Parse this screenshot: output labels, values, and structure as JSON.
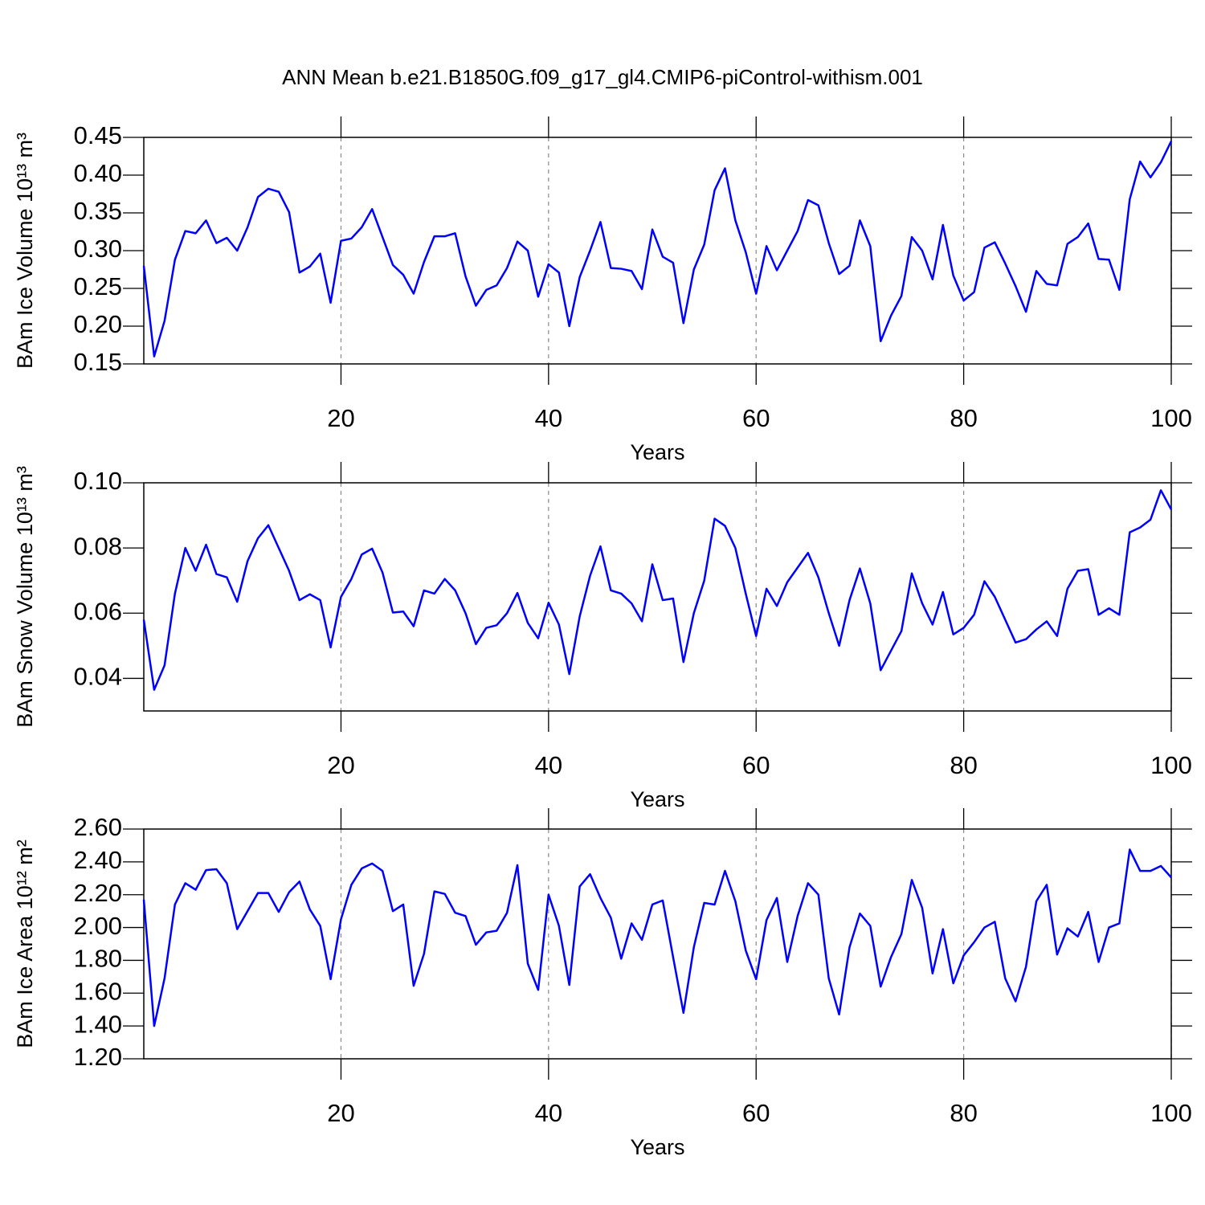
{
  "chart_data": [
    {
      "type": "line",
      "title": "ANN Mean b.e21.B1850G.f09_g17_gl4.CMIP6-piControl-withism.001",
      "xlabel": "Years",
      "ylabel": "BAm Ice Volume 10¹³ m³",
      "color": "#0000ff",
      "grid": true,
      "xlim": [
        1,
        100
      ],
      "xticks": [
        20,
        40,
        60,
        80,
        100
      ],
      "ylim": [
        0.15,
        0.45
      ],
      "yticks": [
        0.15,
        {
          "value": 0.2,
          "label": "0.20"
        },
        0.25,
        {
          "value": 0.3,
          "label": "0.30"
        },
        0.35,
        {
          "value": 0.4,
          "label": "0.40"
        },
        0.45
      ],
      "x": [
        1,
        2,
        3,
        4,
        5,
        6,
        7,
        8,
        9,
        10,
        11,
        12,
        13,
        14,
        15,
        16,
        17,
        18,
        19,
        20,
        21,
        22,
        23,
        24,
        25,
        26,
        27,
        28,
        29,
        30,
        31,
        32,
        33,
        34,
        35,
        36,
        37,
        38,
        39,
        40,
        41,
        42,
        43,
        44,
        45,
        46,
        47,
        48,
        49,
        50,
        51,
        52,
        53,
        54,
        55,
        56,
        57,
        58,
        59,
        60,
        61,
        62,
        63,
        64,
        65,
        66,
        67,
        68,
        69,
        70,
        71,
        72,
        73,
        74,
        75,
        76,
        77,
        78,
        79,
        80,
        81,
        82,
        83,
        84,
        85,
        86,
        87,
        88,
        89,
        90,
        91,
        92,
        93,
        94,
        95,
        96,
        97,
        98,
        99,
        100
      ],
      "values": [
        0.28,
        0.16,
        0.207,
        0.288,
        0.326,
        0.323,
        0.34,
        0.31,
        0.317,
        0.3,
        0.331,
        0.371,
        0.382,
        0.378,
        0.351,
        0.271,
        0.279,
        0.296,
        0.231,
        0.313,
        0.316,
        0.331,
        0.355,
        0.318,
        0.281,
        0.268,
        0.243,
        0.285,
        0.319,
        0.319,
        0.323,
        0.266,
        0.227,
        0.248,
        0.254,
        0.277,
        0.312,
        0.3,
        0.239,
        0.282,
        0.271,
        0.2,
        0.265,
        0.3,
        0.338,
        0.277,
        0.276,
        0.273,
        0.249,
        0.328,
        0.292,
        0.284,
        0.204,
        0.275,
        0.308,
        0.38,
        0.409,
        0.34,
        0.298,
        0.243,
        0.306,
        0.274,
        0.3,
        0.326,
        0.367,
        0.36,
        0.31,
        0.269,
        0.28,
        0.34,
        0.306,
        0.18,
        0.214,
        0.24,
        0.318,
        0.3,
        0.262,
        0.334,
        0.267,
        0.234,
        0.245,
        0.304,
        0.311,
        0.283,
        0.253,
        0.219,
        0.273,
        0.256,
        0.254,
        0.309,
        0.318,
        0.336,
        0.289,
        0.288,
        0.248,
        0.368,
        0.418,
        0.397,
        0.417,
        0.445
      ]
    },
    {
      "type": "line",
      "xlabel": "Years",
      "ylabel": "BAm Snow Volume 10¹³ m³",
      "color": "#0000ff",
      "grid": true,
      "xlim": [
        1,
        100
      ],
      "xticks": [
        20,
        40,
        60,
        80,
        100
      ],
      "ylim": [
        0.03,
        0.1
      ],
      "yticks": [
        0.04,
        0.06,
        0.08,
        {
          "value": 0.1,
          "label": "0.10"
        }
      ],
      "x": [
        1,
        2,
        3,
        4,
        5,
        6,
        7,
        8,
        9,
        10,
        11,
        12,
        13,
        14,
        15,
        16,
        17,
        18,
        19,
        20,
        21,
        22,
        23,
        24,
        25,
        26,
        27,
        28,
        29,
        30,
        31,
        32,
        33,
        34,
        35,
        36,
        37,
        38,
        39,
        40,
        41,
        42,
        43,
        44,
        45,
        46,
        47,
        48,
        49,
        50,
        51,
        52,
        53,
        54,
        55,
        56,
        57,
        58,
        59,
        60,
        61,
        62,
        63,
        64,
        65,
        66,
        67,
        68,
        69,
        70,
        71,
        72,
        73,
        74,
        75,
        76,
        77,
        78,
        79,
        80,
        81,
        82,
        83,
        84,
        85,
        86,
        87,
        88,
        89,
        90,
        91,
        92,
        93,
        94,
        95,
        96,
        97,
        98,
        99,
        100
      ],
      "values": [
        0.058,
        0.0365,
        0.044,
        0.066,
        0.08,
        0.073,
        0.081,
        0.072,
        0.071,
        0.0635,
        0.076,
        0.083,
        0.087,
        0.08,
        0.073,
        0.064,
        0.0658,
        0.064,
        0.0495,
        0.065,
        0.0705,
        0.078,
        0.0798,
        0.0725,
        0.0602,
        0.0605,
        0.056,
        0.067,
        0.066,
        0.0705,
        0.067,
        0.06,
        0.0505,
        0.0555,
        0.0563,
        0.06,
        0.0662,
        0.057,
        0.0523,
        0.0632,
        0.0565,
        0.0413,
        0.059,
        0.0715,
        0.0805,
        0.067,
        0.066,
        0.063,
        0.0575,
        0.075,
        0.064,
        0.0645,
        0.045,
        0.06,
        0.07,
        0.089,
        0.0868,
        0.08,
        0.066,
        0.053,
        0.0675,
        0.0622,
        0.0695,
        0.074,
        0.0785,
        0.071,
        0.06,
        0.05,
        0.064,
        0.0737,
        0.063,
        0.0425,
        0.0485,
        0.0545,
        0.0722,
        0.063,
        0.0565,
        0.0665,
        0.0535,
        0.0555,
        0.0595,
        0.0698,
        0.065,
        0.058,
        0.051,
        0.052,
        0.055,
        0.0575,
        0.053,
        0.0675,
        0.073,
        0.0735,
        0.0595,
        0.0615,
        0.0595,
        0.0848,
        0.0863,
        0.0887,
        0.0977,
        0.0918
      ]
    },
    {
      "type": "line",
      "xlabel": "Years",
      "ylabel": "BAm Ice Area 10¹² m²",
      "color": "#0000ff",
      "grid": true,
      "xlim": [
        1,
        100
      ],
      "xticks": [
        20,
        40,
        60,
        80,
        100
      ],
      "ylim": [
        1.2,
        2.6
      ],
      "yticks": [
        {
          "value": 1.2,
          "label": "1.20"
        },
        {
          "value": 1.4,
          "label": "1.40"
        },
        {
          "value": 1.6,
          "label": "1.60"
        },
        {
          "value": 1.8,
          "label": "1.80"
        },
        {
          "value": 2,
          "label": "2.00"
        },
        {
          "value": 2.2,
          "label": "2.20"
        },
        {
          "value": 2.4,
          "label": "2.40"
        },
        {
          "value": 2.6,
          "label": "2.60"
        }
      ],
      "x": [
        1,
        2,
        3,
        4,
        5,
        6,
        7,
        8,
        9,
        10,
        11,
        12,
        13,
        14,
        15,
        16,
        17,
        18,
        19,
        20,
        21,
        22,
        23,
        24,
        25,
        26,
        27,
        28,
        29,
        30,
        31,
        32,
        33,
        34,
        35,
        36,
        37,
        38,
        39,
        40,
        41,
        42,
        43,
        44,
        45,
        46,
        47,
        48,
        49,
        50,
        51,
        52,
        53,
        54,
        55,
        56,
        57,
        58,
        59,
        60,
        61,
        62,
        63,
        64,
        65,
        66,
        67,
        68,
        69,
        70,
        71,
        72,
        73,
        74,
        75,
        76,
        77,
        78,
        79,
        80,
        81,
        82,
        83,
        84,
        85,
        86,
        87,
        88,
        89,
        90,
        91,
        92,
        93,
        94,
        95,
        96,
        97,
        98,
        99,
        100
      ],
      "values": [
        2.17,
        1.4,
        1.69,
        2.14,
        2.27,
        2.23,
        2.35,
        2.355,
        2.27,
        1.99,
        2.1,
        2.21,
        2.21,
        2.095,
        2.215,
        2.28,
        2.11,
        2.01,
        1.685,
        2.05,
        2.26,
        2.36,
        2.39,
        2.345,
        2.1,
        2.14,
        1.645,
        1.84,
        2.22,
        2.205,
        2.09,
        2.07,
        1.895,
        1.97,
        1.98,
        2.09,
        2.38,
        1.78,
        1.62,
        2.2,
        2.01,
        1.65,
        2.25,
        2.325,
        2.18,
        2.06,
        1.81,
        2.025,
        1.925,
        2.14,
        2.165,
        1.82,
        1.48,
        1.88,
        2.15,
        2.14,
        2.345,
        2.16,
        1.86,
        1.685,
        2.045,
        2.18,
        1.79,
        2.07,
        2.27,
        2.2,
        1.69,
        1.47,
        1.88,
        2.085,
        2.01,
        1.64,
        1.82,
        1.96,
        2.29,
        2.12,
        1.72,
        1.99,
        1.66,
        1.83,
        1.91,
        2.0,
        2.035,
        1.69,
        1.55,
        1.76,
        2.16,
        2.26,
        1.835,
        1.995,
        1.945,
        2.095,
        1.79,
        2.0,
        2.025,
        2.475,
        2.345,
        2.345,
        2.375,
        2.305
      ]
    }
  ]
}
